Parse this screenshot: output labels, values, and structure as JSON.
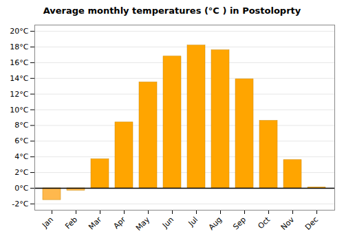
{
  "chart_data": {
    "type": "bar",
    "title": "Average monthly temperatures (°C ) in Postoloprty",
    "categories": [
      "Jan",
      "Feb",
      "Mar",
      "Apr",
      "May",
      "Jun",
      "Jul",
      "Aug",
      "Sep",
      "Oct",
      "Nov",
      "Dec"
    ],
    "values": [
      -1.5,
      -0.3,
      3.7,
      8.4,
      13.5,
      16.8,
      18.2,
      17.6,
      13.9,
      8.6,
      3.6,
      0.1
    ],
    "colors": [
      "#FFB84D",
      "#FFB84D",
      "#FFA500",
      "#FFA500",
      "#FFA500",
      "#FFA500",
      "#FFA500",
      "#FFA500",
      "#FFA500",
      "#FFA500",
      "#FFA500",
      "#FFA500"
    ],
    "ylim": [
      -2.8,
      20.8
    ],
    "yticks": [
      {
        "value": -2,
        "label": "-2°C"
      },
      {
        "value": 0,
        "label": "0°C"
      },
      {
        "value": 2,
        "label": "2°C"
      },
      {
        "value": 4,
        "label": "4°C"
      },
      {
        "value": 6,
        "label": "6°C"
      },
      {
        "value": 8,
        "label": "8°C"
      },
      {
        "value": 10,
        "label": "10°C"
      },
      {
        "value": 12,
        "label": "12°C"
      },
      {
        "value": 14,
        "label": "14°C"
      },
      {
        "value": 16,
        "label": "16°C"
      },
      {
        "value": 18,
        "label": "18°C"
      },
      {
        "value": 20,
        "label": "20°C"
      }
    ],
    "grid": true
  }
}
